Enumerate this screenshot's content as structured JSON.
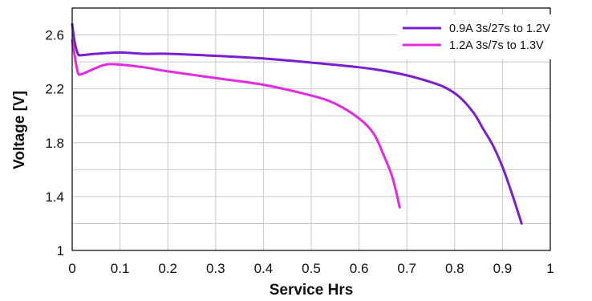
{
  "chart_data": {
    "type": "line",
    "title": "",
    "xlabel": "Service Hrs",
    "ylabel": "Voltage [V]",
    "xlim": [
      0,
      1
    ],
    "ylim": [
      1,
      2.8
    ],
    "x_ticks": [
      0,
      0.1,
      0.2,
      0.3,
      0.4,
      0.5,
      0.6,
      0.7,
      0.8,
      0.9,
      1
    ],
    "x_tick_labels": [
      "0",
      "0.1",
      "0.2",
      "0.3",
      "0.4",
      "0.5",
      "0.6",
      "0.7",
      "0.8",
      "0.9",
      "1"
    ],
    "y_ticks": [
      1,
      1.4,
      1.8,
      2.2,
      2.6
    ],
    "y_tick_labels": [
      "1",
      "1.4",
      "1.8",
      "2.2",
      "2.6"
    ],
    "grid": true,
    "legend_position": "top-right",
    "series": [
      {
        "name": "0.9A 3s/27s to 1.2V",
        "color": "#7a1fd0",
        "points": [
          [
            0.0,
            2.68
          ],
          [
            0.005,
            2.55
          ],
          [
            0.012,
            2.46
          ],
          [
            0.02,
            2.45
          ],
          [
            0.05,
            2.46
          ],
          [
            0.1,
            2.47
          ],
          [
            0.15,
            2.46
          ],
          [
            0.2,
            2.46
          ],
          [
            0.3,
            2.445
          ],
          [
            0.4,
            2.425
          ],
          [
            0.5,
            2.395
          ],
          [
            0.6,
            2.36
          ],
          [
            0.65,
            2.335
          ],
          [
            0.7,
            2.3
          ],
          [
            0.75,
            2.25
          ],
          [
            0.78,
            2.21
          ],
          [
            0.81,
            2.14
          ],
          [
            0.84,
            2.02
          ],
          [
            0.86,
            1.9
          ],
          [
            0.88,
            1.78
          ],
          [
            0.9,
            1.62
          ],
          [
            0.92,
            1.42
          ],
          [
            0.94,
            1.2
          ]
        ]
      },
      {
        "name": "1.2A 3s/7s to 1.3V",
        "color": "#e12ae1",
        "points": [
          [
            0.0,
            2.56
          ],
          [
            0.005,
            2.45
          ],
          [
            0.012,
            2.32
          ],
          [
            0.02,
            2.31
          ],
          [
            0.04,
            2.34
          ],
          [
            0.07,
            2.38
          ],
          [
            0.1,
            2.38
          ],
          [
            0.15,
            2.36
          ],
          [
            0.2,
            2.33
          ],
          [
            0.3,
            2.28
          ],
          [
            0.4,
            2.23
          ],
          [
            0.5,
            2.15
          ],
          [
            0.55,
            2.09
          ],
          [
            0.6,
            1.98
          ],
          [
            0.63,
            1.87
          ],
          [
            0.65,
            1.72
          ],
          [
            0.67,
            1.54
          ],
          [
            0.685,
            1.32
          ]
        ]
      }
    ]
  }
}
